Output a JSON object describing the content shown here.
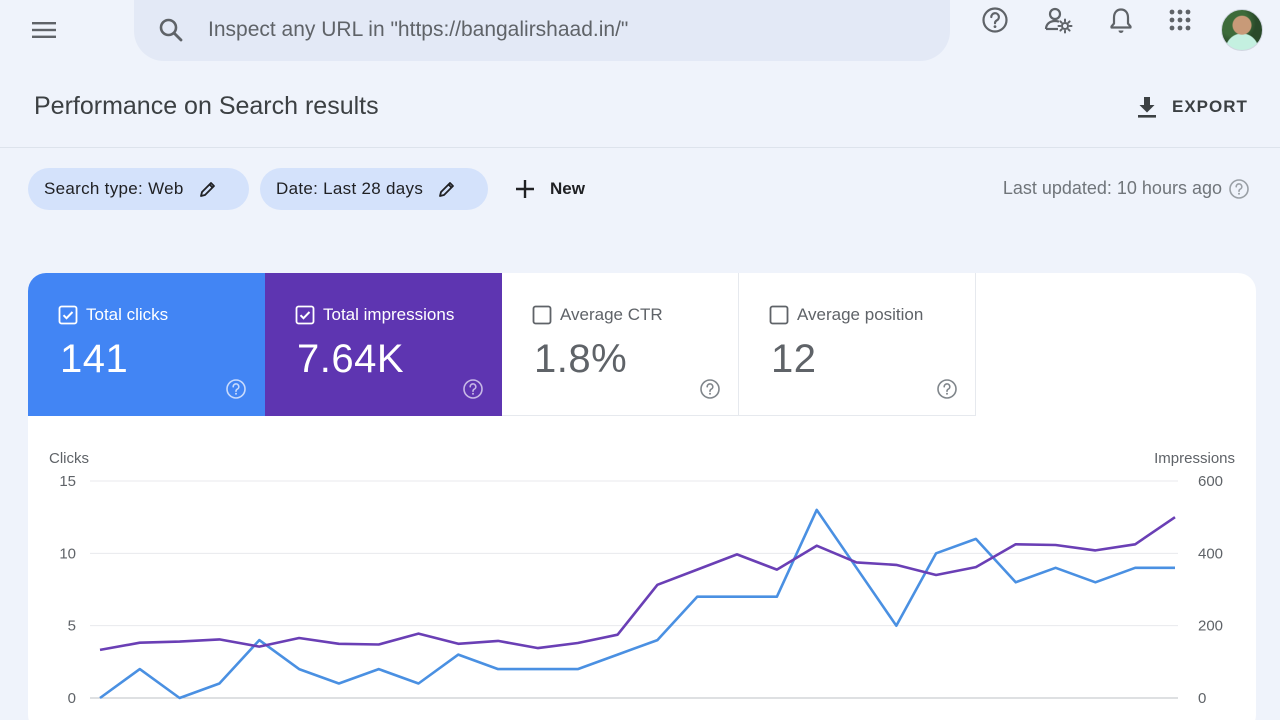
{
  "search": {
    "placeholder": "Inspect any URL in \"https://bangalirshaad.in/\""
  },
  "header": {
    "title": "Performance on Search results",
    "export_label": "EXPORT"
  },
  "filters": {
    "search_type": "Search type: Web",
    "date": "Date: Last 28 days",
    "new_label": "New",
    "last_updated": "Last updated: 10 hours ago"
  },
  "metrics": [
    {
      "label": "Total clicks",
      "value": "141",
      "checked": true,
      "color": "#4285f4"
    },
    {
      "label": "Total impressions",
      "value": "7.64K",
      "checked": true,
      "color": "#5e35b1"
    },
    {
      "label": "Average CTR",
      "value": "1.8%",
      "checked": false,
      "color": "#ffffff"
    },
    {
      "label": "Average position",
      "value": "12",
      "checked": false,
      "color": "#ffffff"
    }
  ],
  "icons": {
    "menu": "menu-icon",
    "search": "search-icon",
    "help": "help-icon",
    "users": "manage-users-icon",
    "notifications": "bell-icon",
    "apps": "apps-grid-icon",
    "export": "download-icon",
    "edit": "pencil-icon",
    "add": "plus-icon"
  },
  "chart_data": {
    "type": "line",
    "ylabel_left": "Clicks",
    "ylabel_right": "Impressions",
    "ylim_left": [
      0,
      15
    ],
    "ylim_right": [
      0,
      600
    ],
    "yticks_left": [
      "0",
      "5",
      "10",
      "15"
    ],
    "yticks_right": [
      "0",
      "200",
      "400",
      "600"
    ],
    "grid": true,
    "series": [
      {
        "axis": "left",
        "color": "#4a90e2",
        "values": [
          0,
          2,
          0,
          1,
          4,
          2,
          1,
          2,
          1,
          3,
          2,
          2,
          2,
          3,
          4,
          7,
          7,
          7,
          13,
          9,
          5,
          10,
          11,
          8,
          9,
          8,
          9,
          9
        ]
      },
      {
        "axis": "right",
        "color": "#6a3fb5",
        "values": [
          133,
          153,
          156,
          162,
          142,
          166,
          150,
          148,
          178,
          150,
          158,
          138,
          152,
          175,
          313,
          355,
          397,
          355,
          421,
          375,
          368,
          340,
          362,
          425,
          423,
          408,
          425,
          500
        ]
      }
    ]
  }
}
